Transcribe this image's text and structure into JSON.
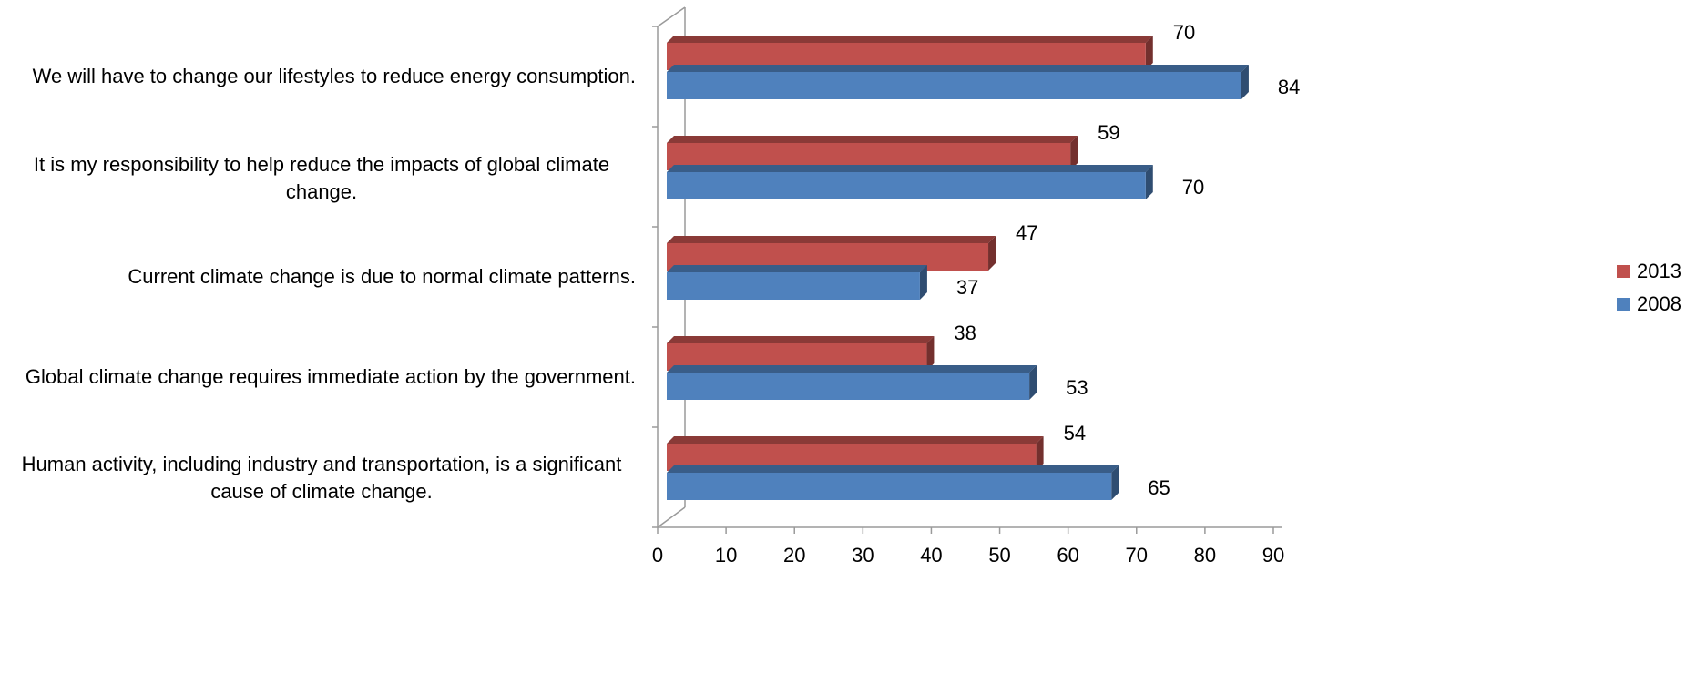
{
  "chart_data": {
    "type": "bar",
    "orientation": "horizontal",
    "style": "3d",
    "categories": [
      "We will have to change our lifestyles to reduce energy consumption.",
      "It is my responsibility to help reduce the impacts of global climate change.",
      "Current climate change is due to normal climate patterns.",
      "Global climate change requires immediate action by the government.",
      "Human activity, including industry and transportation, is a significant cause of climate change."
    ],
    "series": [
      {
        "name": "2013",
        "color": "#C0504D",
        "values": [
          70,
          59,
          47,
          38,
          54
        ]
      },
      {
        "name": "2008",
        "color": "#4F81BD",
        "values": [
          84,
          70,
          37,
          53,
          65
        ]
      }
    ],
    "xlim": [
      0,
      90
    ],
    "ticks": [
      "0",
      "10",
      "20",
      "30",
      "40",
      "50",
      "60",
      "70",
      "80",
      "90"
    ],
    "legend_position": "right",
    "grid": false
  }
}
